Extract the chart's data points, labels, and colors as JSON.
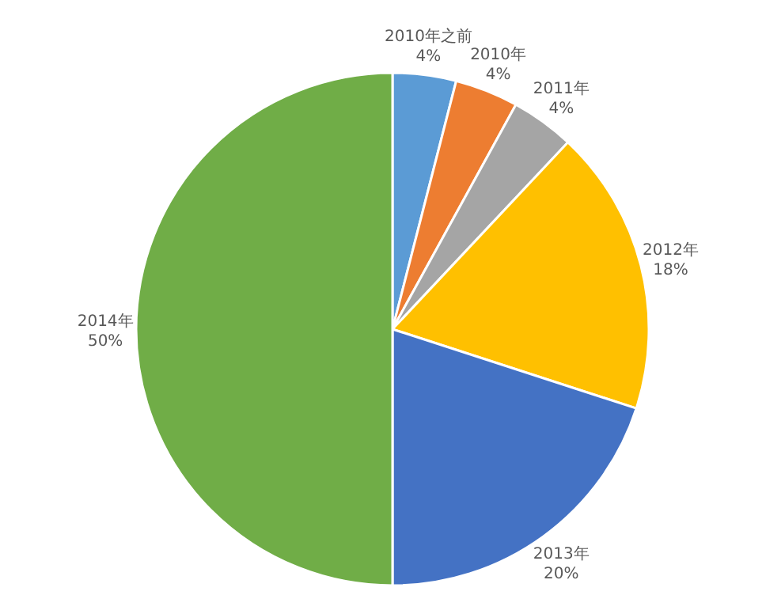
{
  "chart_data": {
    "type": "pie",
    "categories": [
      "2010年之前",
      "2010年",
      "2011年",
      "2012年",
      "2013年",
      "2014年"
    ],
    "values": [
      4,
      4,
      4,
      18,
      20,
      50
    ],
    "colors": [
      "#5b9bd5",
      "#ed7d31",
      "#a5a5a5",
      "#ffc000",
      "#4472c4",
      "#70ad47"
    ],
    "value_labels": [
      "4%",
      "4%",
      "4%",
      "18%",
      "20%",
      "50%"
    ],
    "legend": false
  }
}
